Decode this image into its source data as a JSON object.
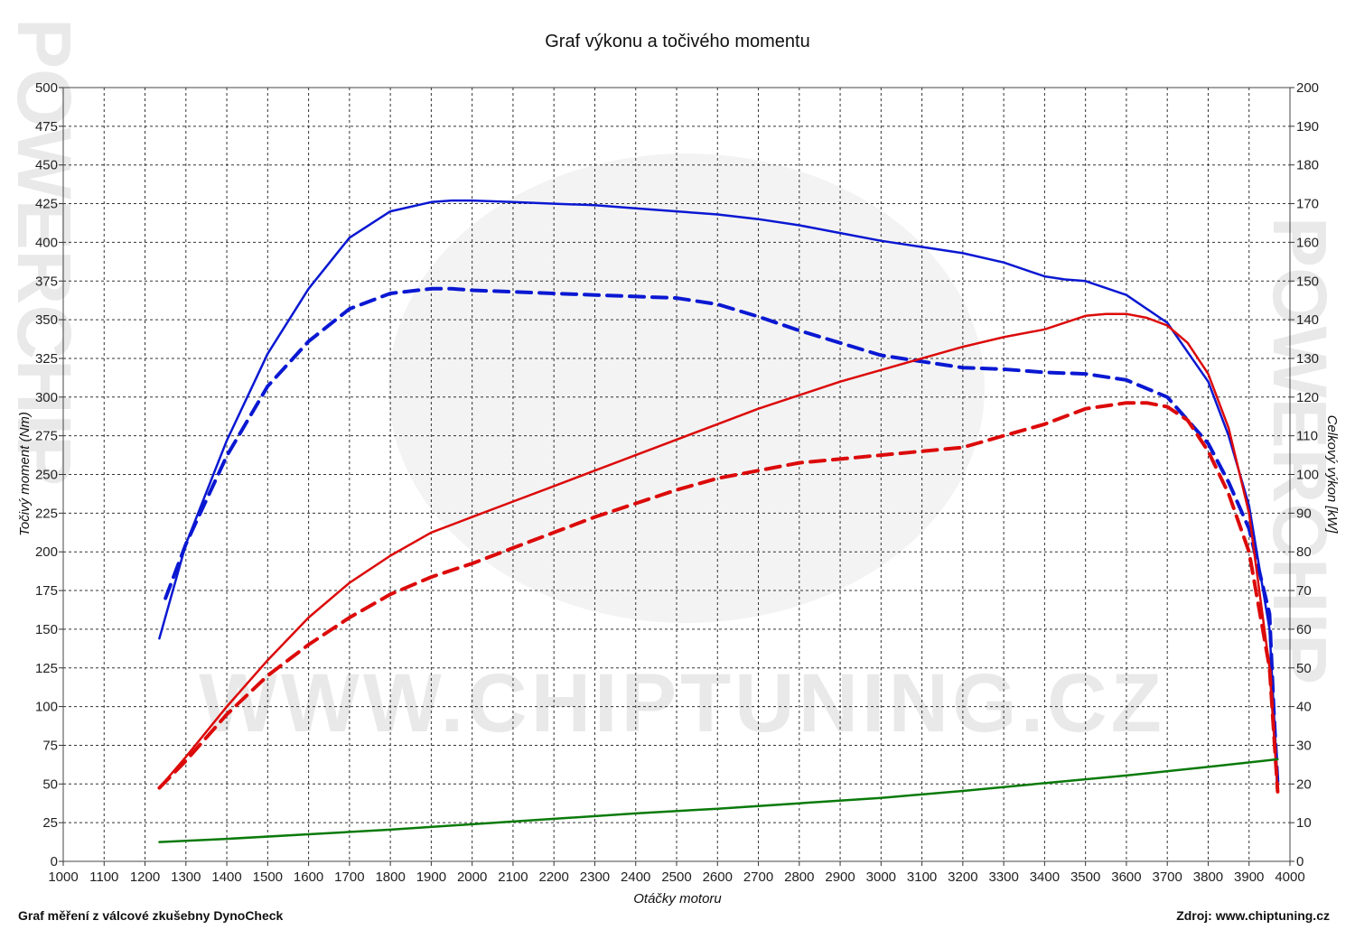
{
  "chart_data": {
    "type": "line",
    "title": "Graf výkonu a točivého momentu",
    "xlabel": "Otáčky motoru",
    "ylabel_left": "Točivý moment (Nm)",
    "ylabel_right": "Celkový výkon [kW]",
    "xlim": [
      1000,
      4000
    ],
    "ylim_left": [
      0,
      500
    ],
    "ylim_right": [
      0,
      200
    ],
    "x_ticks": [
      "1000",
      "1100",
      "1200",
      "1300",
      "1400",
      "1500",
      "1600",
      "1700",
      "1800",
      "1900",
      "2000",
      "2100",
      "2200",
      "2300",
      "2400",
      "2500",
      "2600",
      "2700",
      "2800",
      "2900",
      "3000",
      "3100",
      "3200",
      "3300",
      "3400",
      "3500",
      "3600",
      "3700",
      "3800",
      "3900",
      "4000"
    ],
    "y_left_ticks": [
      "0",
      "25",
      "50",
      "75",
      "100",
      "125",
      "150",
      "175",
      "200",
      "225",
      "250",
      "275",
      "300",
      "325",
      "350",
      "375",
      "400",
      "425",
      "450",
      "475",
      "500"
    ],
    "y_right_ticks": [
      "0",
      "10",
      "20",
      "30",
      "40",
      "50",
      "60",
      "70",
      "80",
      "90",
      "100",
      "110",
      "120",
      "130",
      "140",
      "150",
      "160",
      "170",
      "180",
      "190",
      "200"
    ],
    "grid": true,
    "series": [
      {
        "color": "#0a18d2",
        "dash": "solid",
        "axis": "left",
        "x": [
          1235,
          1300,
          1400,
          1500,
          1600,
          1700,
          1800,
          1900,
          1950,
          2000,
          2100,
          2200,
          2300,
          2400,
          2500,
          2600,
          2700,
          2800,
          2900,
          3000,
          3100,
          3200,
          3300,
          3400,
          3450,
          3500,
          3600,
          3700,
          3800,
          3850,
          3900,
          3950,
          3960,
          3970
        ],
        "y": [
          144,
          205,
          272,
          328,
          370,
          403,
          420,
          426,
          427,
          427,
          426,
          425,
          424,
          422,
          420,
          418,
          415,
          411,
          406,
          401,
          397,
          393,
          387,
          378,
          376,
          375,
          366,
          348,
          310,
          275,
          230,
          150,
          100,
          50
        ]
      },
      {
        "color": "#0a18d2",
        "dash": "dashed",
        "axis": "left",
        "x": [
          1250,
          1300,
          1400,
          1500,
          1600,
          1700,
          1800,
          1900,
          1950,
          2000,
          2100,
          2200,
          2300,
          2400,
          2500,
          2600,
          2700,
          2800,
          2900,
          3000,
          3100,
          3200,
          3300,
          3400,
          3500,
          3600,
          3700,
          3800,
          3850,
          3900,
          3950,
          3960,
          3970
        ],
        "y": [
          170,
          205,
          262,
          307,
          336,
          357,
          367,
          370,
          370,
          369,
          368,
          367,
          366,
          365,
          364,
          360,
          352,
          343,
          335,
          327,
          323,
          319,
          318,
          316,
          315,
          311,
          300,
          270,
          245,
          215,
          160,
          100,
          50
        ]
      },
      {
        "color": "#dc0a0a",
        "dash": "solid",
        "axis": "right",
        "x": [
          1235,
          1300,
          1400,
          1500,
          1600,
          1700,
          1800,
          1900,
          2000,
          2100,
          2200,
          2300,
          2400,
          2500,
          2600,
          2700,
          2800,
          2900,
          3000,
          3100,
          3200,
          3300,
          3400,
          3500,
          3550,
          3600,
          3650,
          3700,
          3750,
          3800,
          3850,
          3900,
          3950,
          3970
        ],
        "y": [
          19,
          27,
          40,
          52,
          63,
          72,
          79,
          85,
          89,
          93,
          97,
          101,
          105,
          109,
          113,
          117,
          120.5,
          124,
          127,
          130,
          133,
          135.5,
          137.5,
          141,
          141.5,
          141.5,
          140.5,
          138.5,
          134,
          126,
          112,
          90,
          50,
          18
        ]
      },
      {
        "color": "#dc0a0a",
        "dash": "dashed",
        "axis": "right",
        "x": [
          1235,
          1300,
          1400,
          1500,
          1600,
          1700,
          1800,
          1900,
          2000,
          2100,
          2200,
          2300,
          2400,
          2500,
          2600,
          2700,
          2800,
          2900,
          3000,
          3100,
          3200,
          3300,
          3400,
          3500,
          3600,
          3650,
          3700,
          3750,
          3800,
          3850,
          3900,
          3950,
          3970
        ],
        "y": [
          19,
          26,
          38,
          48,
          56,
          63,
          69,
          73.5,
          77,
          81,
          85,
          89,
          92.5,
          96,
          99,
          101,
          103,
          104,
          105,
          106,
          107,
          110,
          113,
          117,
          118.5,
          118.5,
          117.5,
          114,
          106,
          95,
          80,
          50,
          18
        ]
      },
      {
        "color": "#0a7a0a",
        "dash": "solid",
        "axis": "left",
        "x": [
          1235,
          1400,
          1600,
          1800,
          2000,
          2200,
          2400,
          2600,
          2800,
          3000,
          3200,
          3400,
          3600,
          3800,
          3970
        ],
        "y": [
          12.5,
          14.5,
          17.5,
          20.5,
          24,
          27.5,
          31,
          34,
          37.5,
          41,
          45.5,
          50.5,
          55.5,
          61,
          66
        ]
      }
    ]
  },
  "footer_left": "Graf měření z válcové zkušebny DynoCheck",
  "footer_right": "Zdroj: www.chiptuning.cz",
  "watermark_text": "WWW.CHIPTUNING.CZ",
  "side_watermark": "POWERCHIP"
}
